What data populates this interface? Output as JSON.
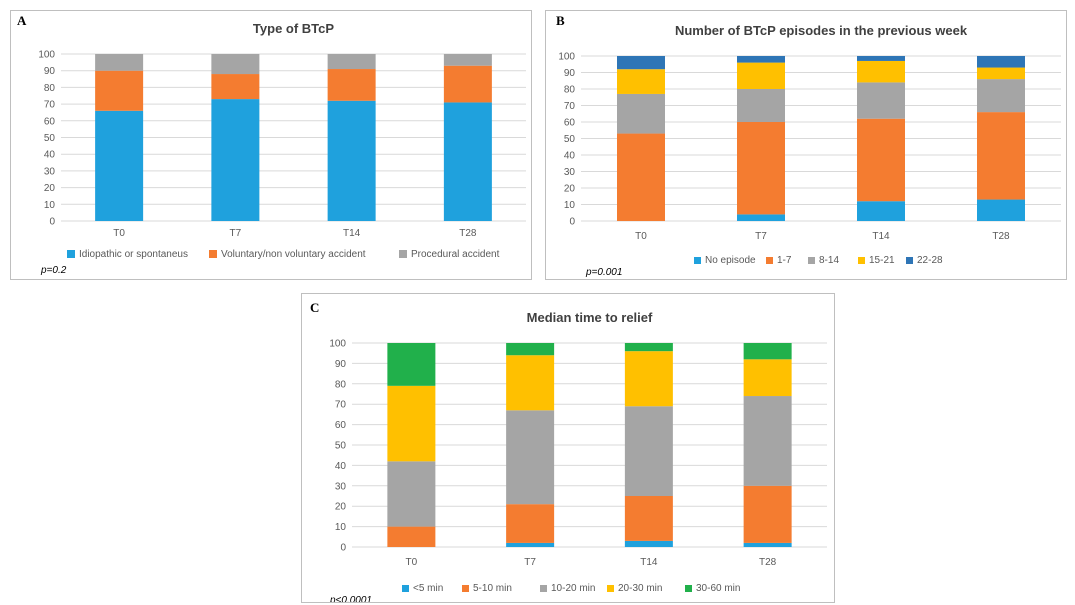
{
  "chart_data": [
    {
      "panel": "A",
      "type": "bar",
      "stacked": true,
      "title": "Type of BTcP",
      "categories": [
        "T0",
        "T7",
        "T14",
        "T28"
      ],
      "ylim": [
        0,
        100
      ],
      "yticks": [
        0,
        10,
        20,
        30,
        40,
        50,
        60,
        70,
        80,
        90,
        100
      ],
      "grid": true,
      "legend": "bottom",
      "series": [
        {
          "name": "Idiopathic or spontaneus",
          "color": "#1fa1dd",
          "values": [
            66,
            73,
            72,
            71
          ]
        },
        {
          "name": "Voluntary/non voluntary accident",
          "color": "#f47c30",
          "values": [
            24,
            15,
            19,
            22
          ]
        },
        {
          "name": "Procedural accident",
          "color": "#a5a5a5",
          "values": [
            10,
            12,
            9,
            7
          ]
        }
      ],
      "annotation": "p=0.2"
    },
    {
      "panel": "B",
      "type": "bar",
      "stacked": true,
      "title": "Number of BTcP episodes in the previous week",
      "categories": [
        "T0",
        "T7",
        "T14",
        "T28"
      ],
      "ylim": [
        0,
        100
      ],
      "yticks": [
        0,
        10,
        20,
        30,
        40,
        50,
        60,
        70,
        80,
        90,
        100
      ],
      "grid": true,
      "legend": "bottom",
      "series": [
        {
          "name": "No episode",
          "color": "#1fa1dd",
          "values": [
            0,
            4,
            12,
            13
          ]
        },
        {
          "name": "1-7",
          "color": "#f47c30",
          "values": [
            53,
            56,
            50,
            53
          ]
        },
        {
          "name": "8-14",
          "color": "#a5a5a5",
          "values": [
            24,
            20,
            22,
            20
          ]
        },
        {
          "name": "15-21",
          "color": "#ffc000",
          "values": [
            15,
            16,
            13,
            7
          ]
        },
        {
          "name": "22-28",
          "color": "#2e75b6",
          "values": [
            8,
            4,
            3,
            7
          ]
        }
      ],
      "annotation": "p=0.001"
    },
    {
      "panel": "C",
      "type": "bar",
      "stacked": true,
      "title": "Median time to relief",
      "categories": [
        "T0",
        "T7",
        "T14",
        "T28"
      ],
      "ylim": [
        0,
        100
      ],
      "yticks": [
        0,
        10,
        20,
        30,
        40,
        50,
        60,
        70,
        80,
        90,
        100
      ],
      "grid": true,
      "legend": "bottom",
      "series": [
        {
          "name": "<5 min",
          "color": "#1fa1dd",
          "values": [
            0,
            2,
            3,
            2
          ]
        },
        {
          "name": "5-10 min",
          "color": "#f47c30",
          "values": [
            10,
            19,
            22,
            28
          ]
        },
        {
          "name": "10-20 min",
          "color": "#a5a5a5",
          "values": [
            32,
            46,
            44,
            44
          ]
        },
        {
          "name": "20-30 min",
          "color": "#ffc000",
          "values": [
            37,
            27,
            27,
            18
          ]
        },
        {
          "name": "30-60 min",
          "color": "#21b04b",
          "values": [
            21,
            6,
            4,
            8
          ]
        }
      ],
      "annotation": "p<0.0001"
    }
  ]
}
